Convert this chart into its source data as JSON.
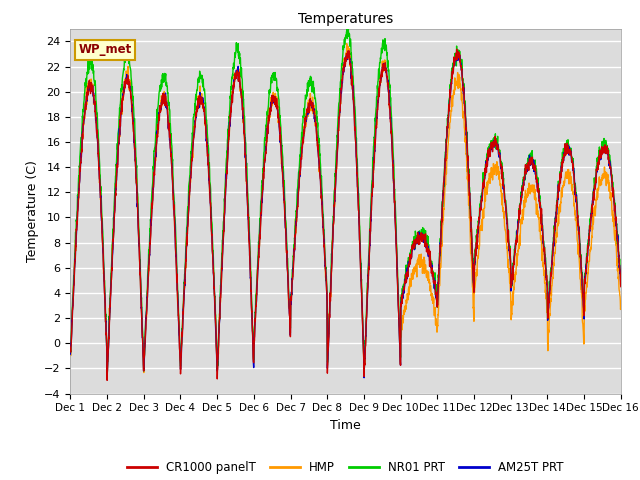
{
  "title": "Temperatures",
  "xlabel": "Time",
  "ylabel": "Temperature (C)",
  "ylim": [
    -4,
    25
  ],
  "yticks": [
    -4,
    -2,
    0,
    2,
    4,
    6,
    8,
    10,
    12,
    14,
    16,
    18,
    20,
    22,
    24
  ],
  "xtick_labels": [
    "Dec 1",
    "Dec 2",
    "Dec 3",
    "Dec 4",
    "Dec 5",
    "Dec 6",
    "Dec 7",
    "Dec 8",
    "Dec 9",
    "Dec 10",
    "Dec 11",
    "Dec 12",
    "Dec 13",
    "Dec 14",
    "Dec 15",
    "Dec 16"
  ],
  "station_label": "WP_met",
  "colors": {
    "CR1000_panelT": "#cc0000",
    "HMP": "#ff9900",
    "NR01_PRT": "#00cc00",
    "AM25T_PRT": "#0000cc"
  },
  "legend_labels": [
    "CR1000 panelT",
    "HMP",
    "NR01 PRT",
    "AM25T PRT"
  ],
  "bg_color": "#dcdcdc",
  "line_width": 1.0,
  "figsize": [
    6.4,
    4.8
  ],
  "dpi": 100
}
